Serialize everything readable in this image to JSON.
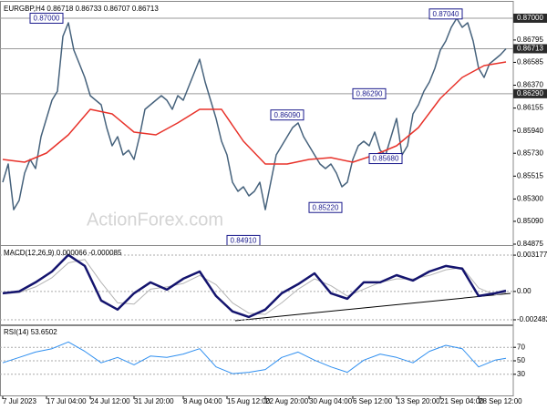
{
  "chart_data": [
    {
      "type": "line",
      "title": "EURGBP,H4  0.86718 0.86733 0.86707 0.86713",
      "watermark": "ActionForex.com",
      "xlim": [
        0,
        92
      ],
      "ylim": [
        0.84875,
        0.87137
      ],
      "grid": false,
      "yticks": [
        {
          "value": 0.86795,
          "label": "0.86795"
        },
        {
          "value": 0.86585,
          "label": "0.86585"
        },
        {
          "value": 0.8637,
          "label": "0.86370"
        },
        {
          "value": 0.86155,
          "label": "0.86155"
        },
        {
          "value": 0.8594,
          "label": "0.85940"
        },
        {
          "value": 0.8573,
          "label": "0.85730"
        },
        {
          "value": 0.85515,
          "label": "0.85515"
        },
        {
          "value": 0.853,
          "label": "0.85300"
        },
        {
          "value": 0.8509,
          "label": "0.85090"
        },
        {
          "value": 0.84875,
          "label": "0.84875"
        }
      ],
      "levels": [
        {
          "value": 0.87,
          "label": "0.87000"
        },
        {
          "value": 0.86713,
          "label": "0.86713"
        },
        {
          "value": 0.8629,
          "label": "0.86290"
        }
      ],
      "annotations": [
        {
          "label": "0.87000",
          "value": 0.87,
          "x": 11
        },
        {
          "label": "0.84910",
          "value": 0.8491,
          "x": 47
        },
        {
          "label": "0.85220",
          "value": 0.8522,
          "x": 62
        },
        {
          "label": "0.85680",
          "value": 0.8568,
          "x": 73
        },
        {
          "label": "0.86090",
          "value": 0.8609,
          "x": 55
        },
        {
          "label": "0.86290",
          "value": 0.8629,
          "x": 70
        },
        {
          "label": "0.87040",
          "value": 0.8704,
          "x": 84
        }
      ],
      "series": [
        {
          "color": "#46627c",
          "values": [
            0.85458,
            0.85629,
            0.852,
            0.85286,
            0.85543,
            0.85672,
            0.85586,
            0.85886,
            0.86057,
            0.86229,
            0.86314,
            0.86829,
            0.86957,
            0.867,
            0.86572,
            0.86443,
            0.86272,
            0.86229,
            0.86186,
            0.85972,
            0.858,
            0.85886,
            0.85715,
            0.85758,
            0.85672,
            0.85886,
            0.86143,
            0.86186,
            0.86229,
            0.86272,
            0.86229,
            0.86143,
            0.86272,
            0.86229,
            0.86357,
            0.86486,
            0.86614,
            0.864,
            0.86229,
            0.86057,
            0.85843,
            0.85715,
            0.85458,
            0.85372,
            0.85415,
            0.85329,
            0.85372,
            0.85458,
            0.852,
            0.85458,
            0.85715,
            0.858,
            0.85886,
            0.85972,
            0.86015,
            0.85886,
            0.858,
            0.85715,
            0.85629,
            0.85586,
            0.85629,
            0.85543,
            0.85415,
            0.85458,
            0.85672,
            0.858,
            0.85843,
            0.858,
            0.85929,
            0.85758,
            0.85715,
            0.85886,
            0.86057,
            0.85715,
            0.858,
            0.861,
            0.86186,
            0.86314,
            0.864,
            0.86529,
            0.867,
            0.86786,
            0.86914,
            0.87,
            0.86914,
            0.86957,
            0.86786,
            0.86529,
            0.86443,
            0.86572,
            0.86614,
            0.86657,
            0.86713
          ]
        },
        {
          "color": "#e8322a",
          "x": [
            0,
            4,
            8,
            12,
            16,
            20,
            24,
            28,
            32,
            36,
            40,
            44,
            48,
            52,
            56,
            60,
            64,
            68,
            72,
            76,
            80,
            84,
            88,
            92
          ],
          "values": [
            0.85672,
            0.85646,
            0.85732,
            0.85903,
            0.86143,
            0.861,
            0.85929,
            0.85903,
            0.86015,
            0.86143,
            0.86143,
            0.85843,
            0.85629,
            0.85629,
            0.85672,
            0.85689,
            0.85646,
            0.85715,
            0.858,
            0.85972,
            0.86246,
            0.86443,
            0.86554,
            0.86589
          ]
        }
      ]
    },
    {
      "type": "line",
      "title": "MACD(12,26,9) 0.000066 -0.000085",
      "xlim": [
        0,
        92
      ],
      "ylim": [
        -0.00288,
        0.00382
      ],
      "grid": true,
      "yticks": [
        0.003177,
        {
          "value": 0,
          "label": "0.00"
        },
        -0.002482
      ],
      "series": [
        {
          "color": "#b4b4b4",
          "width": 1,
          "x": [
            0,
            3,
            6,
            9,
            12,
            15,
            18,
            21,
            24,
            27,
            30,
            33,
            36,
            39,
            42,
            45,
            48,
            51,
            54,
            57,
            60,
            63,
            66,
            69,
            72,
            75,
            78,
            81,
            84,
            87,
            90,
            92
          ],
          "values": [
            -0.0002,
            -0.0001,
            0.0004,
            0.0012,
            0.0025,
            0.0028,
            0.0008,
            -0.001,
            -0.0011,
            0.0002,
            0.0004,
            0.0007,
            0.0014,
            0.0006,
            -0.001,
            -0.0019,
            -0.002,
            -0.001,
            0.0002,
            0.0011,
            0.0005,
            -0.0004,
            0.0002,
            0.0008,
            0.0011,
            0.0011,
            0.0014,
            0.0019,
            0.0021,
            0.0003,
            -0.0003,
            -0.0001
          ]
        },
        {
          "color": "#14146e",
          "width": 2.5,
          "x": [
            0,
            3,
            6,
            9,
            12,
            15,
            18,
            21,
            24,
            27,
            30,
            33,
            36,
            39,
            42,
            45,
            48,
            51,
            54,
            57,
            60,
            63,
            66,
            69,
            72,
            75,
            78,
            81,
            84,
            87,
            90,
            92
          ],
          "values": [
            -0.00016,
            0,
            0.0008,
            0.00175,
            0.0032,
            0.00223,
            -0.0008,
            -0.00159,
            -0.00016,
            0.0008,
            0.00016,
            0.00112,
            0.00175,
            -0.0004,
            -0.00175,
            -0.00223,
            -0.00159,
            -0.00016,
            0.00064,
            0.00159,
            -0.00016,
            -0.00064,
            0.0008,
            0.0008,
            0.00143,
            0.00096,
            0.00175,
            0.00223,
            0.00199,
            -0.0004,
            -0.00016,
            6e-05
          ]
        }
      ]
    },
    {
      "type": "line",
      "title": "RSI(14) 53.6502",
      "xlim": [
        0,
        92
      ],
      "ylim": [
        0,
        100
      ],
      "grid": true,
      "yticks": [
        70,
        50,
        30
      ],
      "xticks": [
        {
          "value": 0,
          "label": "7 Jul 2023"
        },
        {
          "value": 8,
          "label": "17 Jul 04:00"
        },
        {
          "value": 16,
          "label": "24 Jul 12:00"
        },
        {
          "value": 24,
          "label": "31 Jul 20:00"
        },
        {
          "value": 33,
          "label": "8 Aug 04:00"
        },
        {
          "value": 41,
          "label": "15 Aug 12:00"
        },
        {
          "value": 48,
          "label": "22 Aug 20:00"
        },
        {
          "value": 56,
          "label": "30 Aug 04:00"
        },
        {
          "value": 64,
          "label": "6 Sep 12:00"
        },
        {
          "value": 72,
          "label": "13 Sep 20:00"
        },
        {
          "value": 80,
          "label": "21 Sep 04:00"
        },
        {
          "value": 87,
          "label": "28 Sep 12:00"
        }
      ],
      "series": [
        {
          "color": "#2f8ff0",
          "width": 1,
          "x": [
            0,
            3,
            6,
            9,
            12,
            15,
            18,
            21,
            24,
            27,
            30,
            33,
            36,
            39,
            42,
            45,
            48,
            51,
            54,
            57,
            60,
            63,
            66,
            69,
            72,
            75,
            78,
            81,
            84,
            87,
            90,
            92
          ],
          "values": [
            47,
            55,
            63,
            68,
            78,
            64,
            47,
            55,
            44,
            57,
            55,
            60,
            68,
            41,
            31,
            33,
            37,
            55,
            63,
            51,
            41,
            33,
            51,
            60,
            55,
            47,
            64,
            73,
            68,
            41,
            51,
            53.6502
          ]
        }
      ]
    }
  ]
}
